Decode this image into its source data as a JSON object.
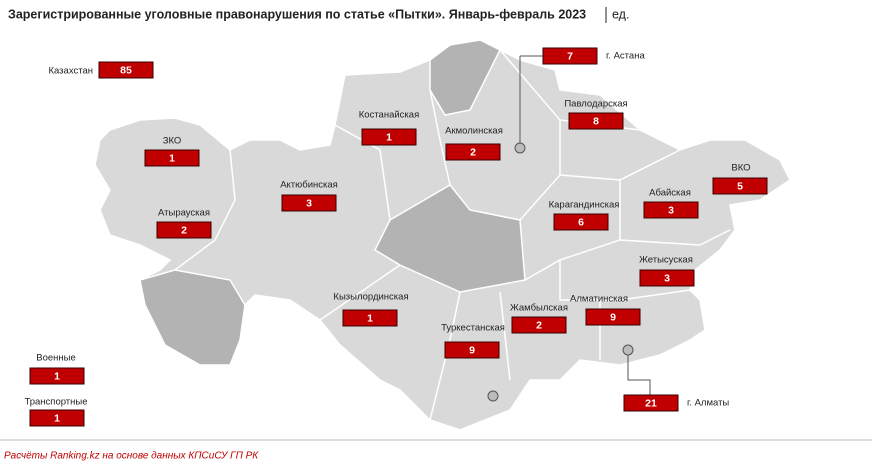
{
  "title": "Зарегистрированные уголовные правонарушения по статье «Пытки». Январь-февраль 2023",
  "unit": "ед.",
  "regions": [
    {
      "name": "Казахстан",
      "value": 85
    },
    {
      "name": "ЗКО",
      "value": 1
    },
    {
      "name": "Атырауская",
      "value": 2
    },
    {
      "name": "Актюбинская",
      "value": 3
    },
    {
      "name": "Костанайская",
      "value": 1
    },
    {
      "name": "Акмолинская",
      "value": 2
    },
    {
      "name": "г. Астана",
      "value": 7
    },
    {
      "name": "Павлодарская",
      "value": 8
    },
    {
      "name": "ВКО",
      "value": 5
    },
    {
      "name": "Абайская",
      "value": 3
    },
    {
      "name": "Карагандинская",
      "value": 6
    },
    {
      "name": "Жетысуская",
      "value": 3
    },
    {
      "name": "Алматинская",
      "value": 9
    },
    {
      "name": "Жамбылская",
      "value": 2
    },
    {
      "name": "Кызылординская",
      "value": 1
    },
    {
      "name": "Туркестанская",
      "value": 9
    },
    {
      "name": "г. Алматы",
      "value": 21
    },
    {
      "name": "Военные",
      "value": 1
    },
    {
      "name": "Транспортные",
      "value": 1
    }
  ],
  "source": "Расчёты Ranking.kz на основе данных КПСиСУ ГП РК"
}
